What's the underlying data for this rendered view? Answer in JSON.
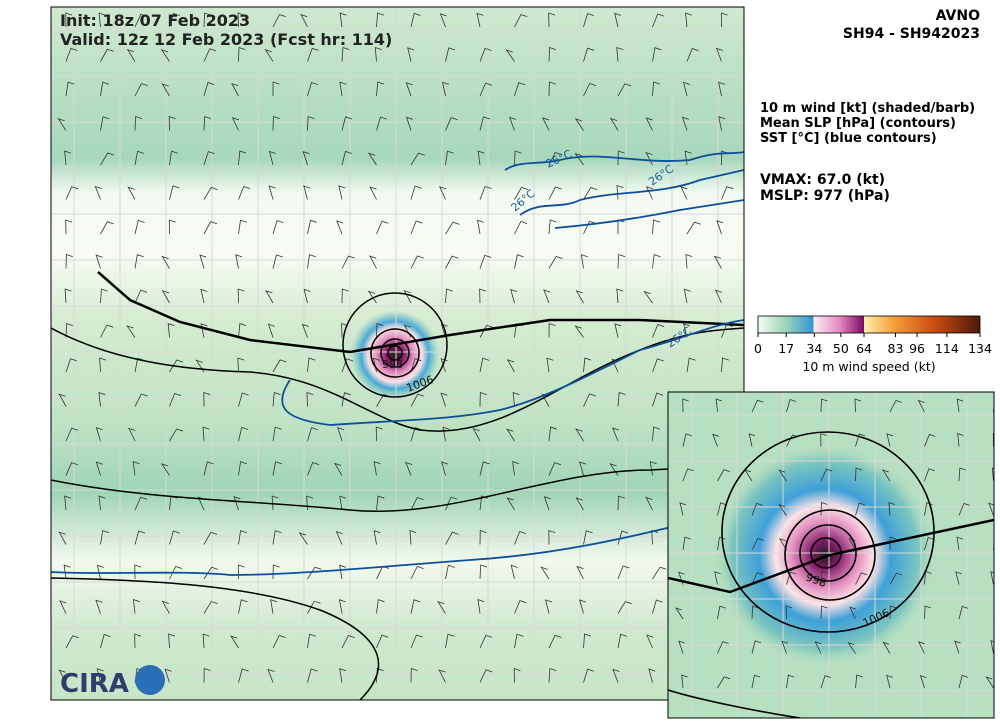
{
  "header": {
    "init": "Init:   18z 07 Feb 2023",
    "valid": "Valid: 12z 12 Feb 2023 (Fcst hr: 114)"
  },
  "model": "AVNO",
  "storm": "SH94 - SH942023",
  "legend": [
    "10 m wind [kt] (shaded/barb)",
    "Mean SLP [hPa] (contours)",
    "SST [°C] (blue contours)"
  ],
  "vmax": "VMAX:  67.0 (kt)",
  "mslp": "MSLP:  977 (hPa)",
  "colorbar": {
    "ticks": [
      0,
      17,
      34,
      50,
      64,
      83,
      96,
      114,
      134
    ],
    "label": "10 m wind speed (kt)"
  },
  "contour_labels": {
    "sst": [
      "26°C",
      "26°C",
      "26°C",
      "26°C"
    ],
    "slp": [
      "1006",
      "998",
      "1006",
      "998"
    ]
  },
  "logo": "CIRA"
}
